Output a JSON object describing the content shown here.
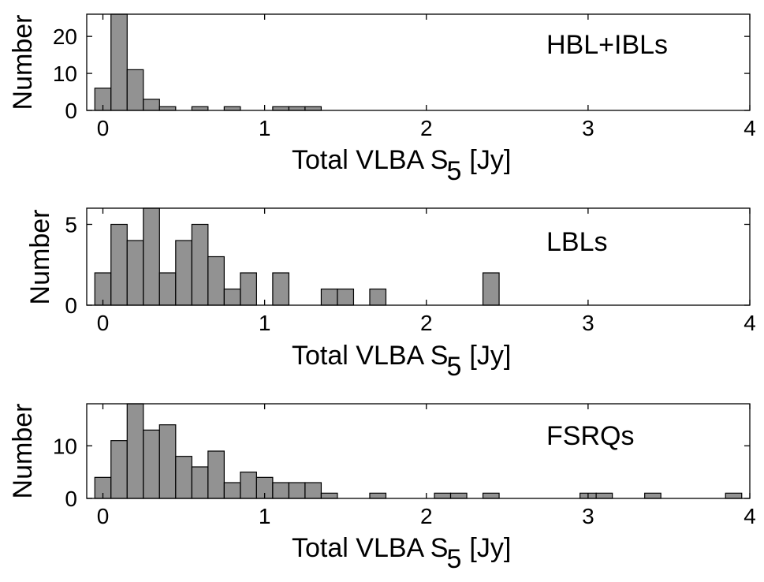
{
  "figure": {
    "title": ""
  },
  "chart_data": [
    {
      "type": "histogram",
      "legend": "HBL+IBLs",
      "xlabel": "Total VLBA S",
      "xlabel_subscript": "5",
      "xlabel_unit": "[Jy]",
      "ylabel": "Number",
      "xlim": [
        -0.1,
        4
      ],
      "ylim": [
        0,
        26
      ],
      "xticks": [
        "0",
        "1",
        "2",
        "3",
        "4"
      ],
      "yticks": [
        "0",
        "10",
        "20"
      ],
      "bin_width": 0.1,
      "bin_centers": [
        0,
        0.1,
        0.2,
        0.3,
        0.4,
        0.6,
        0.8,
        1.1,
        1.2,
        1.3
      ],
      "values": [
        6,
        26,
        11,
        3,
        1,
        1,
        1,
        1,
        1,
        1
      ]
    },
    {
      "type": "histogram",
      "legend": "LBLs",
      "xlabel": "Total VLBA S",
      "xlabel_subscript": "5",
      "xlabel_unit": "[Jy]",
      "ylabel": "Number",
      "xlim": [
        -0.1,
        4
      ],
      "ylim": [
        0,
        6
      ],
      "xticks": [
        "0",
        "1",
        "2",
        "3",
        "4"
      ],
      "yticks": [
        "0",
        "5"
      ],
      "bin_width": 0.1,
      "bin_centers": [
        0,
        0.1,
        0.2,
        0.3,
        0.4,
        0.5,
        0.6,
        0.7,
        0.8,
        0.9,
        1.1,
        1.4,
        1.5,
        1.7,
        2.4
      ],
      "values": [
        2,
        5,
        4,
        6,
        2,
        4,
        5,
        3,
        1,
        2,
        2,
        1,
        1,
        1,
        2
      ]
    },
    {
      "type": "histogram",
      "legend": "FSRQs",
      "xlabel": "Total VLBA S",
      "xlabel_subscript": "5",
      "xlabel_unit": "[Jy]",
      "ylabel": "Number",
      "xlim": [
        -0.1,
        4
      ],
      "ylim": [
        0,
        18
      ],
      "xticks": [
        "0",
        "1",
        "2",
        "3",
        "4"
      ],
      "yticks": [
        "0",
        "10"
      ],
      "bin_width": 0.1,
      "bin_centers": [
        0,
        0.1,
        0.2,
        0.3,
        0.4,
        0.5,
        0.6,
        0.7,
        0.8,
        0.9,
        1.0,
        1.1,
        1.2,
        1.3,
        1.4,
        1.7,
        2.1,
        2.2,
        2.4,
        3.0,
        3.1,
        3.4,
        3.9
      ],
      "values": [
        4,
        11,
        18,
        13,
        14,
        8,
        6,
        9,
        3,
        5,
        4,
        3,
        3,
        3,
        1,
        1,
        1,
        1,
        1,
        1,
        1,
        1,
        1
      ]
    }
  ]
}
